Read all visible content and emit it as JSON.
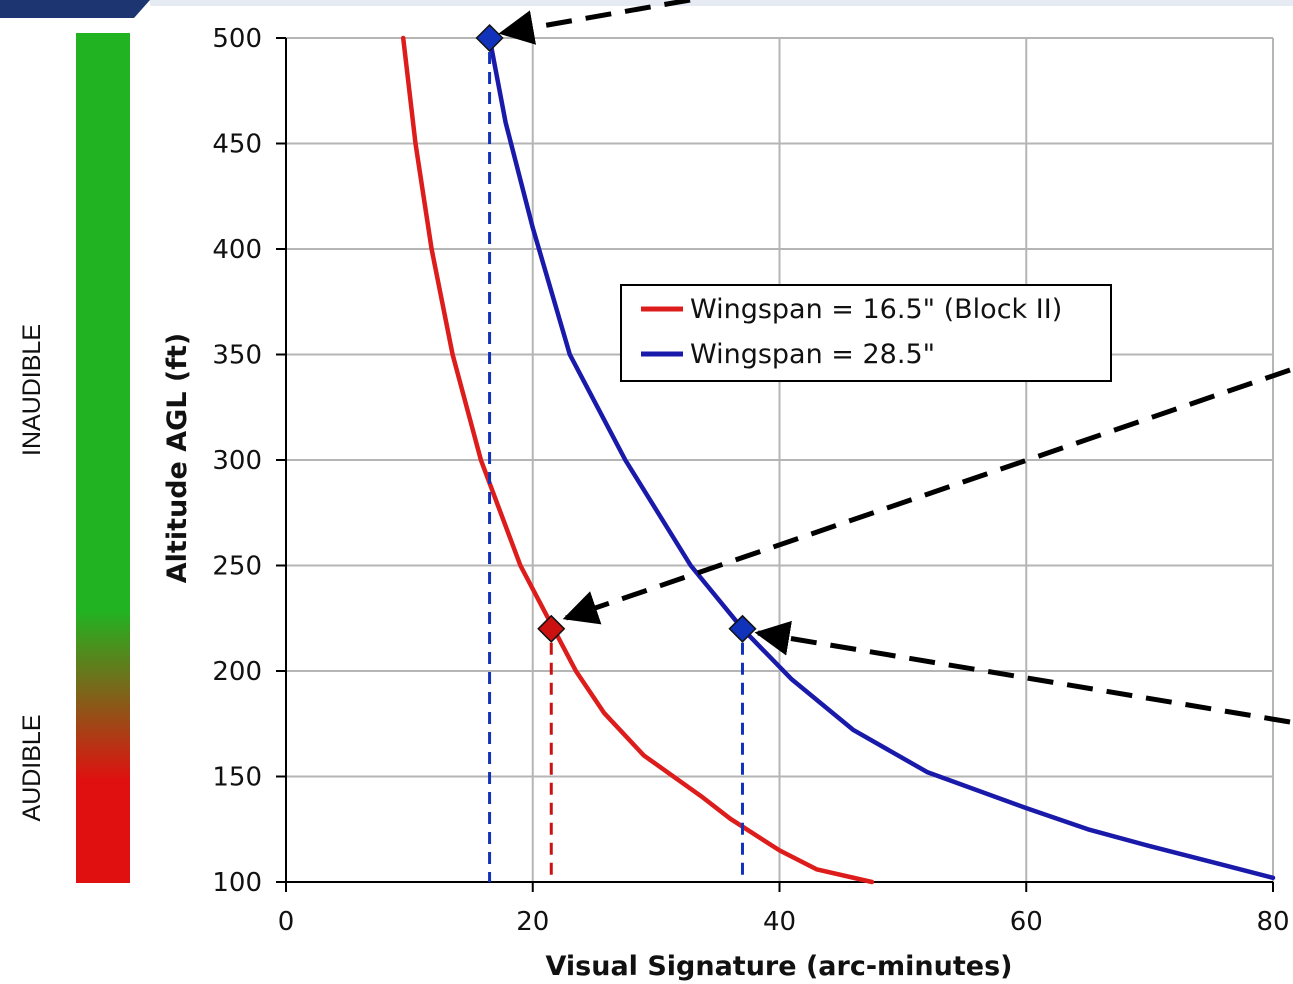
{
  "chart_data": {
    "type": "line",
    "xlabel": "Visual Signature (arc-minutes)",
    "ylabel": "Altitude AGL (ft)",
    "xlim": [
      0,
      80
    ],
    "ylim": [
      100,
      500
    ],
    "xticks": [
      0,
      20,
      40,
      60,
      80
    ],
    "yticks": [
      100,
      150,
      200,
      250,
      300,
      350,
      400,
      450,
      500
    ],
    "grid": true,
    "legend_position": "center-right",
    "series": [
      {
        "name": "Wingspan = 16.5\" (Block II)",
        "color": "#dd1c1c",
        "points": [
          [
            9.5,
            500
          ],
          [
            10.5,
            450
          ],
          [
            11.8,
            400
          ],
          [
            13.5,
            350
          ],
          [
            15.8,
            300
          ],
          [
            19,
            250
          ],
          [
            23.5,
            200
          ],
          [
            25.8,
            180
          ],
          [
            29,
            160
          ],
          [
            33.8,
            140
          ],
          [
            36,
            130
          ],
          [
            40,
            115
          ],
          [
            43,
            106
          ],
          [
            47.5,
            100
          ]
        ]
      },
      {
        "name": "Wingspan = 28.5\"",
        "color": "#1a1aaa",
        "points": [
          [
            16.5,
            500
          ],
          [
            17.8,
            460
          ],
          [
            20,
            410
          ],
          [
            23,
            350
          ],
          [
            27.5,
            300
          ],
          [
            32.8,
            250
          ],
          [
            37,
            220
          ],
          [
            41,
            196
          ],
          [
            46,
            172
          ],
          [
            52,
            152
          ],
          [
            60,
            135
          ],
          [
            65,
            125
          ],
          [
            70,
            117
          ],
          [
            76,
            108
          ],
          [
            80,
            102
          ]
        ]
      }
    ],
    "markers": [
      {
        "series": 1,
        "x": 16.5,
        "y": 500,
        "color": "#1133bb"
      },
      {
        "series": 0,
        "x": 21.5,
        "y": 220,
        "color": "#cc1111"
      },
      {
        "series": 1,
        "x": 37,
        "y": 220,
        "color": "#1133bb"
      }
    ],
    "side_band": {
      "top_label": "INAUDIBLE",
      "bottom_label": "AUDIBLE",
      "top_color": "#22b322",
      "bottom_color": "#e01010"
    }
  }
}
